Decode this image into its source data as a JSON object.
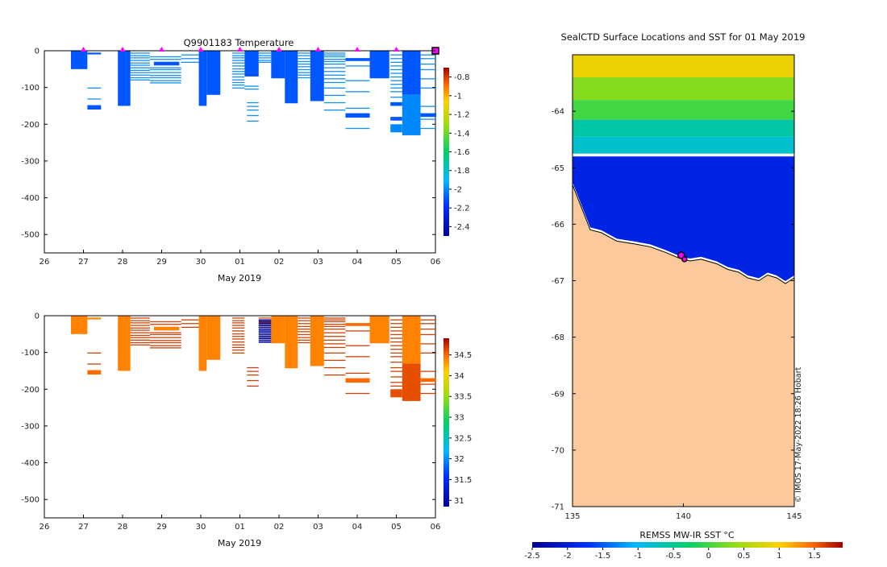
{
  "figure": {
    "credit": "© IMOS 17-May-2022 18:26 Hobart",
    "colors": {
      "land": "#fbc99c",
      "water_mask": "#ffffff",
      "profile_marker": "#ff00ff",
      "coast": "#000000",
      "temp_fill": "#1490f0",
      "temp_light": "#1aa8f8",
      "sal_fill": "#c9440a",
      "sal_dark": "#b8300a",
      "sal_low": "#000080"
    }
  },
  "chart_data": [
    {
      "id": "temperature",
      "type": "heatmap",
      "title": "Q9901183  Temperature",
      "xlabel": "May 2019",
      "ylabel": "",
      "xlim": [
        26,
        36
      ],
      "ylim": [
        -550,
        0
      ],
      "x_ticks": [
        26,
        27,
        28,
        29,
        30,
        31,
        32,
        33,
        34,
        35,
        36
      ],
      "x_tick_labels": [
        "26",
        "27",
        "28",
        "29",
        "30",
        "01",
        "02",
        "03",
        "04",
        "05",
        "06"
      ],
      "y_ticks": [
        0,
        -100,
        -200,
        -300,
        -400,
        -500
      ],
      "y_tick_labels": [
        "0",
        "-100",
        "-200",
        "-300",
        "-400",
        "-500"
      ],
      "profile_days": [
        27,
        28,
        29,
        30,
        31,
        32,
        33,
        34,
        35,
        36
      ],
      "colorbar": {
        "range": [
          -2.5,
          -0.7
        ],
        "ticks": [
          -0.8,
          -1,
          -1.2,
          -1.4,
          -1.6,
          -1.8,
          -2,
          -2.2,
          -2.4
        ],
        "tick_labels": [
          "-0.8",
          "-1",
          "-1.2",
          "-1.4",
          "-1.6",
          "-1.8",
          "-2",
          "-2.2",
          "-2.4"
        ]
      },
      "blocks": [
        {
          "x0": 26.68,
          "x1": 27.1,
          "top": 0,
          "bottom": -50,
          "value": -2.1
        },
        {
          "x0": 27.1,
          "x1": 27.45,
          "top": -5,
          "bottom": -10,
          "value": -2.1
        },
        {
          "x0": 27.1,
          "x1": 27.45,
          "top": -148,
          "bottom": -160,
          "value": -2.1
        },
        {
          "x0": 27.88,
          "x1": 28.2,
          "top": 0,
          "bottom": -150,
          "value": -2.1
        },
        {
          "x0": 28.8,
          "x1": 29.45,
          "top": -30,
          "bottom": -40,
          "value": -2.1
        },
        {
          "x0": 29.95,
          "x1": 30.15,
          "top": 0,
          "bottom": -150,
          "value": -2.1
        },
        {
          "x0": 30.15,
          "x1": 30.5,
          "top": 0,
          "bottom": -120,
          "value": -2.1
        },
        {
          "x0": 31.12,
          "x1": 31.48,
          "top": 0,
          "bottom": -70,
          "value": -2.1
        },
        {
          "x0": 31.8,
          "x1": 32.15,
          "top": 0,
          "bottom": -75,
          "value": -2.1
        },
        {
          "x0": 32.15,
          "x1": 32.48,
          "top": 0,
          "bottom": -143,
          "value": -2.1
        },
        {
          "x0": 32.8,
          "x1": 33.15,
          "top": 0,
          "bottom": -137,
          "value": -2.1
        },
        {
          "x0": 33.7,
          "x1": 34.32,
          "top": -20,
          "bottom": -28,
          "value": -2.1
        },
        {
          "x0": 33.7,
          "x1": 34.32,
          "top": -170,
          "bottom": -182,
          "value": -2.1
        },
        {
          "x0": 34.32,
          "x1": 34.82,
          "top": 0,
          "bottom": -75,
          "value": -2.1
        },
        {
          "x0": 34.85,
          "x1": 35.15,
          "top": -140,
          "bottom": -150,
          "value": -2.1
        },
        {
          "x0": 34.85,
          "x1": 35.15,
          "top": -180,
          "bottom": -190,
          "value": -2.1
        },
        {
          "x0": 34.85,
          "x1": 35.15,
          "top": -200,
          "bottom": -222,
          "value": -2.0
        },
        {
          "x0": 35.15,
          "x1": 35.62,
          "top": 0,
          "bottom": -120,
          "value": -2.1
        },
        {
          "x0": 35.15,
          "x1": 35.62,
          "top": -120,
          "bottom": -230,
          "value": -2.0
        },
        {
          "x0": 35.62,
          "x1": 36.02,
          "top": -170,
          "bottom": -180,
          "value": -2.1
        }
      ],
      "lines": [
        {
          "x0": 27.1,
          "x1": 27.45,
          "depths": [
            -100,
            -130
          ]
        },
        {
          "x0": 28.2,
          "x1": 28.7,
          "depths": [
            -5,
            -12,
            -18,
            -25,
            -32,
            -38,
            -45,
            -52,
            -58,
            -65,
            -72,
            -78
          ]
        },
        {
          "x0": 28.7,
          "x1": 29.5,
          "depths": [
            -15,
            -22,
            -45,
            -50,
            -58,
            -66,
            -72,
            -80,
            -86
          ]
        },
        {
          "x0": 29.5,
          "x1": 29.95,
          "depths": [
            -10,
            -20,
            -30
          ]
        },
        {
          "x0": 30.8,
          "x1": 31.12,
          "depths": [
            -5,
            -12,
            -18,
            -25,
            -32,
            -40,
            -48,
            -55,
            -62,
            -70,
            -78,
            -85,
            -92,
            -100
          ]
        },
        {
          "x0": 31.12,
          "x1": 31.48,
          "depths": [
            -95,
            -103
          ]
        },
        {
          "x0": 31.18,
          "x1": 31.48,
          "depths": [
            -140,
            -150,
            -160,
            -175,
            -190
          ]
        },
        {
          "x0": 31.48,
          "x1": 31.8,
          "depths": [
            -5,
            -12,
            -18,
            -25,
            -30
          ]
        },
        {
          "x0": 32.48,
          "x1": 32.8,
          "depths": [
            -5,
            -12,
            -20,
            -28,
            -35,
            -42,
            -50,
            -58,
            -65,
            -72
          ]
        },
        {
          "x0": 33.15,
          "x1": 33.7,
          "depths": [
            -5,
            -10,
            -15,
            -22,
            -28,
            -35,
            -45,
            -55,
            -65,
            -75,
            -85,
            -100,
            -120,
            -140,
            -160
          ]
        },
        {
          "x0": 33.7,
          "x1": 34.32,
          "depths": [
            -40,
            -80,
            -110,
            -155,
            -210
          ]
        },
        {
          "x0": 34.85,
          "x1": 35.15,
          "depths": [
            -10,
            -20,
            -30,
            -40,
            -50,
            -60,
            -70,
            -80,
            -90,
            -100,
            -110,
            -125
          ]
        },
        {
          "x0": 35.62,
          "x1": 36.02,
          "depths": [
            -10,
            -20,
            -35,
            -50,
            -75,
            -100,
            -150,
            -185,
            -210
          ]
        }
      ]
    },
    {
      "id": "salinity",
      "type": "heatmap",
      "title": "",
      "xlabel": "May 2019",
      "ylabel": "",
      "xlim": [
        26,
        36
      ],
      "ylim": [
        -550,
        0
      ],
      "x_ticks": [
        26,
        27,
        28,
        29,
        30,
        31,
        32,
        33,
        34,
        35,
        36
      ],
      "x_tick_labels": [
        "26",
        "27",
        "28",
        "29",
        "30",
        "01",
        "02",
        "03",
        "04",
        "05",
        "06"
      ],
      "y_ticks": [
        0,
        -100,
        -200,
        -300,
        -400,
        -500
      ],
      "y_tick_labels": [
        "0",
        "-100",
        "-200",
        "-300",
        "-400",
        "-500"
      ],
      "colorbar": {
        "range": [
          30.85,
          34.9
        ],
        "ticks": [
          34.5,
          34,
          33.5,
          33,
          32.5,
          32,
          31.5,
          31
        ],
        "tick_labels": [
          "34.5",
          "34",
          "33.5",
          "33",
          "32.5",
          "32",
          "31.5",
          "31"
        ]
      },
      "blocks": [
        {
          "x0": 26.68,
          "x1": 27.1,
          "top": 0,
          "bottom": -50,
          "value": 34.4
        },
        {
          "x0": 27.1,
          "x1": 27.45,
          "top": -5,
          "bottom": -10,
          "value": 34.4
        },
        {
          "x0": 27.1,
          "x1": 27.45,
          "top": -148,
          "bottom": -160,
          "value": 34.5
        },
        {
          "x0": 27.88,
          "x1": 28.2,
          "top": 0,
          "bottom": -150,
          "value": 34.4
        },
        {
          "x0": 28.8,
          "x1": 29.45,
          "top": -30,
          "bottom": -40,
          "value": 34.4
        },
        {
          "x0": 29.95,
          "x1": 30.15,
          "top": 0,
          "bottom": -150,
          "value": 34.4
        },
        {
          "x0": 30.15,
          "x1": 30.5,
          "top": 0,
          "bottom": -120,
          "value": 34.4
        },
        {
          "x0": 31.8,
          "x1": 32.15,
          "top": 0,
          "bottom": -75,
          "value": 34.4
        },
        {
          "x0": 32.15,
          "x1": 32.48,
          "top": 0,
          "bottom": -143,
          "value": 34.4
        },
        {
          "x0": 32.8,
          "x1": 33.15,
          "top": 0,
          "bottom": -137,
          "value": 34.4
        },
        {
          "x0": 33.7,
          "x1": 34.32,
          "top": -20,
          "bottom": -28,
          "value": 34.5
        },
        {
          "x0": 33.7,
          "x1": 34.32,
          "top": -170,
          "bottom": -182,
          "value": 34.5
        },
        {
          "x0": 34.32,
          "x1": 34.82,
          "top": 0,
          "bottom": -75,
          "value": 34.4
        },
        {
          "x0": 34.85,
          "x1": 35.15,
          "top": -200,
          "bottom": -222,
          "value": 34.6
        },
        {
          "x0": 35.15,
          "x1": 35.62,
          "top": 0,
          "bottom": -130,
          "value": 34.4
        },
        {
          "x0": 35.15,
          "x1": 35.62,
          "top": -130,
          "bottom": -232,
          "value": 34.6
        },
        {
          "x0": 35.62,
          "x1": 36.02,
          "top": -170,
          "bottom": -180,
          "value": 34.5
        }
      ],
      "lines": [
        {
          "x0": 27.1,
          "x1": 27.45,
          "depths": [
            -100,
            -130
          ]
        },
        {
          "x0": 28.2,
          "x1": 28.7,
          "depths": [
            -5,
            -12,
            -18,
            -25,
            -32,
            -38,
            -45,
            -52,
            -58,
            -65,
            -72,
            -78
          ]
        },
        {
          "x0": 28.7,
          "x1": 29.5,
          "depths": [
            -15,
            -22,
            -45,
            -50,
            -58,
            -66,
            -72,
            -80,
            -86
          ]
        },
        {
          "x0": 29.5,
          "x1": 29.95,
          "depths": [
            -10,
            -20,
            -30
          ]
        },
        {
          "x0": 30.8,
          "x1": 31.12,
          "depths": [
            -5,
            -12,
            -18,
            -25,
            -32,
            -40,
            -48,
            -55,
            -62,
            -70,
            -78,
            -85,
            -92,
            -100
          ]
        },
        {
          "x0": 31.18,
          "x1": 31.48,
          "depths": [
            -140,
            -150,
            -160,
            -175,
            -190
          ]
        },
        {
          "x0": 31.48,
          "x1": 31.8,
          "depths": [
            -5,
            -12,
            -18,
            -25,
            -30
          ]
        },
        {
          "x0": 32.48,
          "x1": 32.8,
          "depths": [
            -5,
            -12,
            -20,
            -28,
            -35,
            -42,
            -50,
            -58,
            -65,
            -72
          ]
        },
        {
          "x0": 33.15,
          "x1": 33.7,
          "depths": [
            -5,
            -10,
            -15,
            -22,
            -28,
            -35,
            -45,
            -55,
            -65,
            -75,
            -85,
            -100,
            -120,
            -140,
            -160
          ]
        },
        {
          "x0": 33.7,
          "x1": 34.32,
          "depths": [
            -40,
            -80,
            -110,
            -155,
            -210
          ]
        },
        {
          "x0": 34.85,
          "x1": 35.15,
          "depths": [
            -10,
            -20,
            -30,
            -40,
            -50,
            -60,
            -70,
            -80,
            -90,
            -100,
            -110,
            -125,
            -140,
            -150,
            -165,
            -180,
            -190
          ]
        },
        {
          "x0": 35.62,
          "x1": 36.02,
          "depths": [
            -10,
            -20,
            -35,
            -50,
            -75,
            -100,
            -150,
            -185,
            -210
          ]
        }
      ],
      "low_lines": [
        {
          "x0": 31.48,
          "x1": 31.8,
          "depths": [
            -10,
            -15,
            -20,
            -25,
            -30,
            -35,
            -40,
            -45,
            -50,
            -55,
            -60,
            -65,
            -70
          ],
          "value": 30.9
        }
      ]
    },
    {
      "id": "sst_map",
      "type": "heatmap",
      "title": "SealCTD Surface Locations and SST for 01 May 2019",
      "xlabel": "",
      "ylabel": "",
      "xlim": [
        135,
        145
      ],
      "ylim": [
        -71,
        -63
      ],
      "x_ticks": [
        135,
        140,
        145
      ],
      "x_tick_labels": [
        "135",
        "140",
        "145"
      ],
      "y_ticks": [
        -64,
        -65,
        -66,
        -67,
        -68,
        -69,
        -70,
        -71
      ],
      "y_tick_labels": [
        "-64",
        "-65",
        "-66",
        "-67",
        "-68",
        "-69",
        "-70",
        "-71"
      ],
      "colorbar": {
        "label": "REMSS MW-IR SST °C",
        "range": [
          -2.5,
          1.9
        ],
        "ticks": [
          -2.5,
          -2,
          -1.5,
          -1,
          -0.5,
          0,
          0.5,
          1,
          1.5
        ],
        "tick_labels": [
          "-2.5",
          "-2",
          "-1.5",
          "-1",
          "-0.5",
          "0",
          "0.5",
          "1",
          "1.5"
        ]
      },
      "coastline": [
        [
          135,
          -65.3
        ],
        [
          135.4,
          -65.7
        ],
        [
          135.8,
          -66.1
        ],
        [
          136.3,
          -66.15
        ],
        [
          137.0,
          -66.3
        ],
        [
          137.8,
          -66.35
        ],
        [
          138.5,
          -66.4
        ],
        [
          139.2,
          -66.5
        ],
        [
          139.8,
          -66.6
        ],
        [
          140.3,
          -66.65
        ],
        [
          140.8,
          -66.62
        ],
        [
          141.5,
          -66.7
        ],
        [
          142.0,
          -66.8
        ],
        [
          142.5,
          -66.85
        ],
        [
          142.9,
          -66.95
        ],
        [
          143.4,
          -67.0
        ],
        [
          143.8,
          -66.9
        ],
        [
          144.2,
          -66.95
        ],
        [
          144.6,
          -67.05
        ],
        [
          145,
          -66.95
        ]
      ],
      "sst_bands": [
        {
          "lat_top": -63,
          "lat_bottom": -63.4,
          "temp": 0.9
        },
        {
          "lat_top": -63.4,
          "lat_bottom": -63.8,
          "temp": 0.3
        },
        {
          "lat_top": -63.8,
          "lat_bottom": -64.15,
          "temp": 0.0
        },
        {
          "lat_top": -64.15,
          "lat_bottom": -64.45,
          "temp": -0.6
        },
        {
          "lat_top": -64.45,
          "lat_bottom": -64.75,
          "temp": -0.8
        }
      ],
      "cold_zone": {
        "lat_top": -64.8,
        "temp": -1.9
      },
      "profiles": [
        {
          "lon": 139.9,
          "lat": -66.55,
          "highlight": true
        },
        {
          "lon": 140.05,
          "lat": -66.62,
          "highlight": false
        }
      ]
    }
  ]
}
